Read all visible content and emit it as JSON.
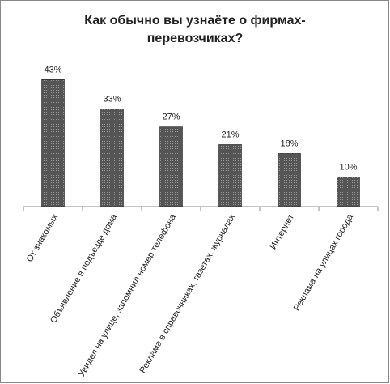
{
  "chart_data": {
    "type": "bar",
    "title": [
      "Как обычно вы узнаёте о фирмах-",
      "перевозчиках?"
    ],
    "categories": [
      "От знакомых",
      "Объявление в подъезде дома",
      "Увидел на улице, запомнил номер телефона",
      "Реклама в справочниках, газетах, журналах",
      "Интернет",
      "Реклама на улицах города"
    ],
    "values": [
      43,
      33,
      27,
      21,
      18,
      10
    ],
    "value_labels": [
      "43%",
      "33%",
      "27%",
      "21%",
      "18%",
      "10%"
    ],
    "color": "#555555",
    "ylim": [
      0,
      45
    ]
  }
}
